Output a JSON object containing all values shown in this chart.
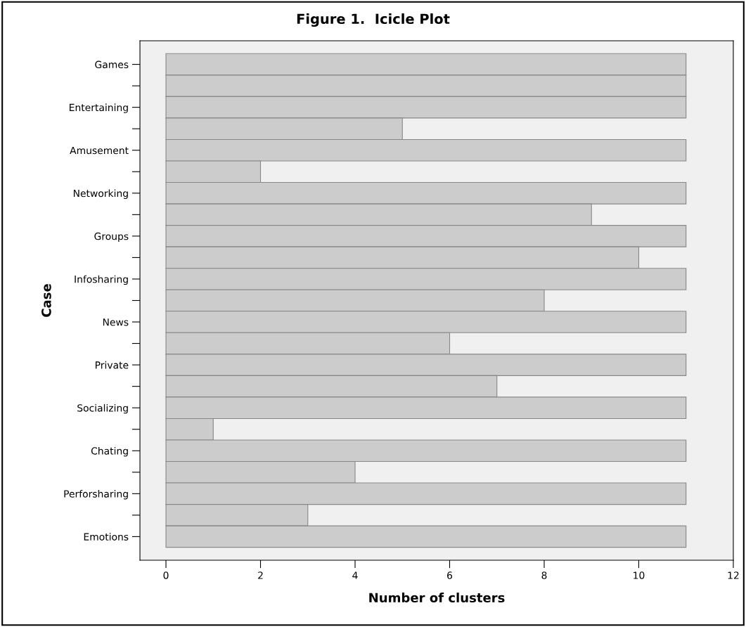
{
  "chart_data": {
    "type": "bar",
    "orientation": "horizontal",
    "title": "Figure 1.  Icicle Plot",
    "xlabel": "Number of clusters",
    "ylabel": "Case",
    "categories": [
      "Games",
      null,
      "Entertaining",
      null,
      "Amusement",
      null,
      "Networking",
      null,
      "Groups",
      null,
      "Infosharing",
      null,
      "News",
      null,
      "Private",
      null,
      "Socializing",
      null,
      "Chating",
      null,
      "Perforsharing",
      null,
      "Emotions"
    ],
    "values": [
      11,
      11,
      11,
      5,
      11,
      2,
      11,
      9,
      11,
      10,
      11,
      8,
      11,
      6,
      11,
      7,
      11,
      1,
      11,
      4,
      11,
      3,
      11
    ],
    "color": "#cccccc",
    "xlim": [
      -0.55,
      12
    ],
    "xticks": [
      0,
      2,
      4,
      6,
      8,
      10,
      12
    ],
    "grid": false
  }
}
